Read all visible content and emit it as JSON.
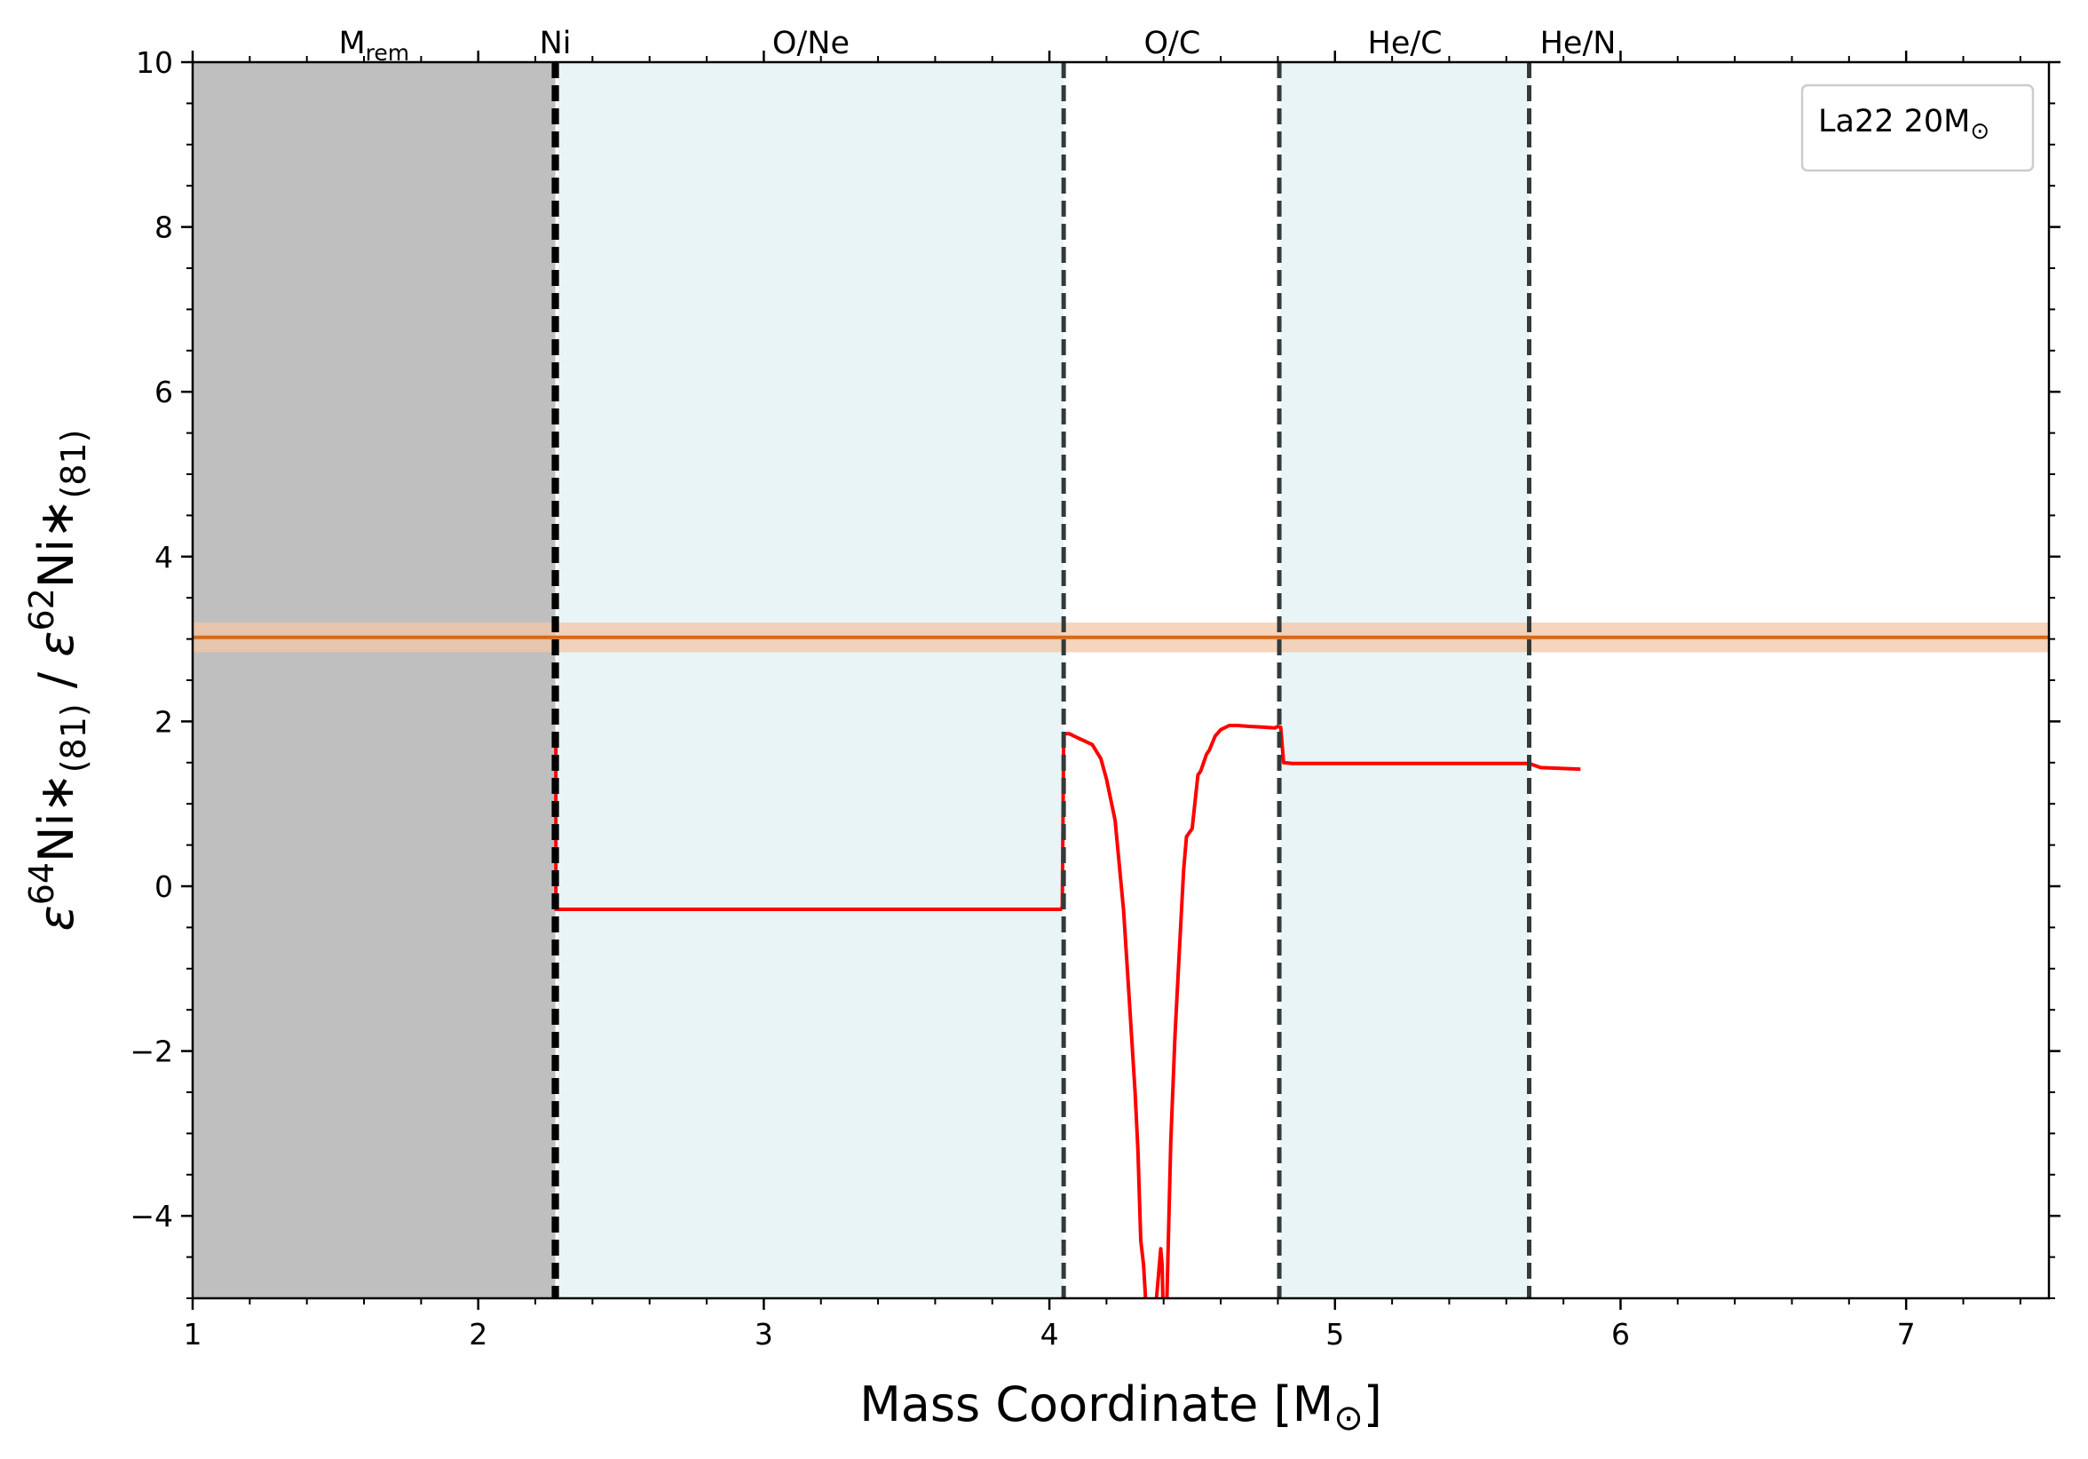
{
  "chart_data": {
    "type": "line",
    "xlabel": {
      "main": "Mass Coordinate [M",
      "sym": "⊙",
      "close": "]"
    },
    "ylabel": {
      "eps1": "ε",
      "sup1": "64",
      "ni1": "Ni∗",
      "sub1": "(81)",
      "slash": " / ",
      "eps2": "ε",
      "sup2": "62",
      "ni2": "Ni∗",
      "sub2": "(81)"
    },
    "xlim": [
      1,
      7.5
    ],
    "ylim": [
      -5,
      10
    ],
    "xticks": [
      1,
      2,
      3,
      4,
      5,
      6,
      7
    ],
    "yticks": [
      10,
      8,
      6,
      4,
      2,
      0,
      -2,
      -4
    ],
    "grid": false,
    "legend": {
      "placement": "top-right",
      "label": "La22 20M",
      "sym": "⊙"
    },
    "zones": [
      {
        "label": "M",
        "sub": "rem",
        "x": [
          1.0,
          2.27
        ],
        "fill": "#bfbfbf"
      },
      {
        "label": "Ni",
        "sub": "",
        "x": [
          2.27,
          2.28
        ],
        "fill": ""
      },
      {
        "label": "O/Ne",
        "sub": "",
        "x": [
          2.28,
          4.05
        ],
        "fill": "#e8f4f6"
      },
      {
        "label": "O/C",
        "sub": "",
        "x": [
          4.05,
          4.81
        ],
        "fill": ""
      },
      {
        "label": "He/C",
        "sub": "",
        "x": [
          4.81,
          5.68
        ],
        "fill": "#e8f4f6"
      },
      {
        "label": "He/N",
        "sub": "",
        "x": [
          5.68,
          7.5
        ],
        "fill": ""
      }
    ],
    "boundaries": [
      {
        "x": 2.265,
        "color": "#000000"
      },
      {
        "x": 2.275,
        "color": "#000000"
      },
      {
        "x": 4.05,
        "color": "#333a3a"
      },
      {
        "x": 4.805,
        "color": "#333a3a"
      },
      {
        "x": 5.68,
        "color": "#333a3a"
      }
    ],
    "reference": {
      "value": 3.02,
      "band": [
        2.84,
        3.2
      ],
      "color": "#d2691e",
      "band_color": "#f4c6a6"
    },
    "series": [
      {
        "color": "#ff0000",
        "x": [
          2.272,
          2.272,
          2.28,
          3.0,
          4.04,
          4.045,
          4.05,
          4.07,
          4.1,
          4.15,
          4.18,
          4.2,
          4.23,
          4.26,
          4.28,
          4.3,
          4.31,
          4.32,
          4.33,
          4.345,
          4.36,
          4.37,
          4.39,
          4.395,
          4.4,
          4.41,
          4.425,
          4.44,
          4.455,
          4.47,
          4.48,
          4.5,
          4.52,
          4.53,
          4.55,
          4.56,
          4.58,
          4.6,
          4.63,
          4.66,
          4.7,
          4.75,
          4.79,
          4.8,
          4.81,
          4.82,
          4.85,
          5.0,
          5.3,
          5.6,
          5.68,
          5.72,
          5.86
        ],
        "y": [
          1.7,
          -0.28,
          -0.28,
          -0.28,
          -0.28,
          -0.25,
          1.85,
          1.85,
          1.8,
          1.72,
          1.55,
          1.3,
          0.8,
          -0.3,
          -1.4,
          -2.5,
          -3.2,
          -4.3,
          -4.6,
          -5.5,
          -5.5,
          -5.2,
          -4.4,
          -4.6,
          -5.5,
          -5.2,
          -3.1,
          -1.8,
          -0.8,
          0.2,
          0.6,
          0.7,
          1.35,
          1.4,
          1.6,
          1.65,
          1.82,
          1.9,
          1.95,
          1.95,
          1.94,
          1.93,
          1.92,
          1.94,
          1.93,
          1.5,
          1.49,
          1.49,
          1.49,
          1.49,
          1.49,
          1.44,
          1.42
        ]
      }
    ]
  }
}
